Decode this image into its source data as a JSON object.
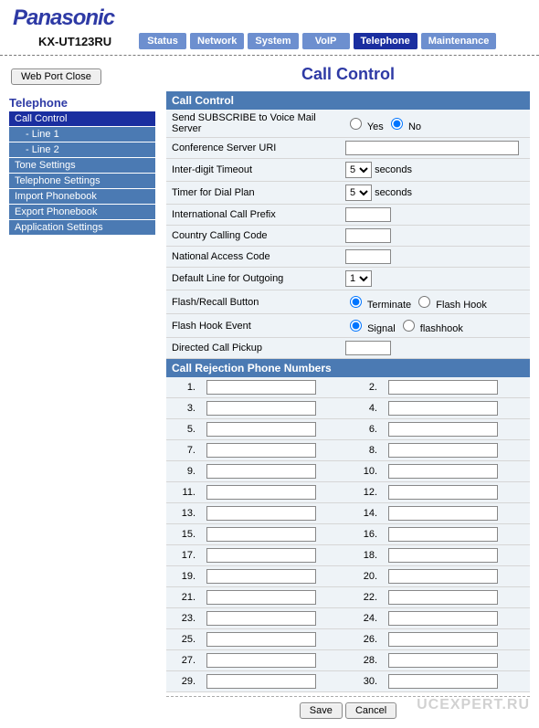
{
  "brand": "Panasonic",
  "model": "KX-UT123RU",
  "nav": {
    "items": [
      {
        "label": "Status",
        "active": false
      },
      {
        "label": "Network",
        "active": false
      },
      {
        "label": "System",
        "active": false
      },
      {
        "label": "VoIP",
        "active": false
      },
      {
        "label": "Telephone",
        "active": true
      },
      {
        "label": "Maintenance",
        "active": false
      }
    ]
  },
  "left": {
    "port_button": "Web Port Close",
    "heading": "Telephone",
    "items": [
      {
        "label": "Call Control",
        "active": true,
        "sub": false
      },
      {
        "label": "- Line 1",
        "active": false,
        "sub": true
      },
      {
        "label": "- Line 2",
        "active": false,
        "sub": true
      },
      {
        "label": "Tone Settings",
        "active": false,
        "sub": false
      },
      {
        "label": "Telephone Settings",
        "active": false,
        "sub": false
      },
      {
        "label": "Import Phonebook",
        "active": false,
        "sub": false
      },
      {
        "label": "Export Phonebook",
        "active": false,
        "sub": false
      },
      {
        "label": "Application Settings",
        "active": false,
        "sub": false
      }
    ]
  },
  "page": {
    "title": "Call Control",
    "section1": "Call Control",
    "section2": "Call Rejection Phone Numbers",
    "rows": {
      "subscribe_label": "Send SUBSCRIBE to Voice Mail Server",
      "subscribe_yes": "Yes",
      "subscribe_no": "No",
      "subscribe_value": "No",
      "conf_uri_label": "Conference Server URI",
      "conf_uri_value": "",
      "interdigit_label": "Inter-digit Timeout",
      "interdigit_value": "5",
      "seconds": "seconds",
      "dialplan_label": "Timer for Dial Plan",
      "dialplan_value": "5",
      "intlprefix_label": "International Call Prefix",
      "intlprefix_value": "",
      "country_label": "Country Calling Code",
      "country_value": "",
      "nac_label": "National Access Code",
      "nac_value": "",
      "defline_label": "Default Line for Outgoing",
      "defline_value": "1",
      "flash_label": "Flash/Recall Button",
      "flash_opt1": "Terminate",
      "flash_opt2": "Flash Hook",
      "flash_value": "Terminate",
      "hook_label": "Flash Hook Event",
      "hook_opt1": "Signal",
      "hook_opt2": "flashhook",
      "hook_value": "Signal",
      "dcp_label": "Directed Call Pickup",
      "dcp_value": ""
    },
    "rejection_count": 30,
    "buttons": {
      "save": "Save",
      "cancel": "Cancel"
    }
  },
  "watermark": "UCEXPERT.RU",
  "colors": {
    "brand_blue": "#2e3aa5",
    "tab_bg": "#6d8fcf",
    "tab_active": "#1a2ea0",
    "section_bg": "#4b7ab3",
    "row_bg": "#eef3f7",
    "highlight_border": "#e79a2f"
  }
}
